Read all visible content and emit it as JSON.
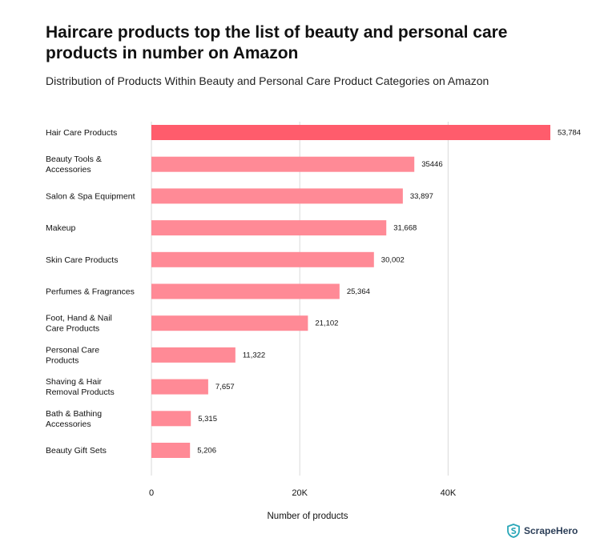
{
  "title": "Haircare products top the list of beauty and personal care products in number on Amazon",
  "subtitle": "Distribution of Products Within Beauty and Personal Care Product Categories on Amazon",
  "brand": {
    "name": "ScrapeHero",
    "icon": "shield-s-logo"
  },
  "colors": {
    "bar": "#ff8a96",
    "highlight": "#ff5c6c",
    "grid": "#d9d9d9"
  },
  "chart_data": {
    "type": "bar",
    "orientation": "horizontal",
    "xlabel": "Number of products",
    "ylabel": "",
    "xlim": [
      0,
      53784
    ],
    "xticks": [
      0,
      20000,
      40000
    ],
    "xtick_labels": [
      "0",
      "20K",
      "40K"
    ],
    "grid": true,
    "categories": [
      "Hair Care Products",
      "Beauty Tools & Accessories",
      "Salon & Spa Equipment",
      "Makeup",
      "Skin Care Products",
      "Perfumes & Fragrances",
      "Foot, Hand & Nail Care Products",
      "Personal Care Products",
      "Shaving & Hair Removal Products",
      "Bath & Bathing Accessories",
      "Beauty Gift Sets"
    ],
    "category_lines": [
      [
        "Hair Care Products"
      ],
      [
        "Beauty Tools &",
        "Accessories"
      ],
      [
        "Salon & Spa Equipment"
      ],
      [
        "Makeup"
      ],
      [
        "Skin Care Products"
      ],
      [
        "Perfumes & Fragrances"
      ],
      [
        "Foot, Hand & Nail",
        "Care Products"
      ],
      [
        "Personal Care",
        "Products"
      ],
      [
        "Shaving & Hair",
        "Removal Products"
      ],
      [
        "Bath & Bathing",
        "Accessories"
      ],
      [
        "Beauty Gift Sets"
      ]
    ],
    "values": [
      53784,
      35446,
      33897,
      31668,
      30002,
      25364,
      21102,
      11322,
      7657,
      5315,
      5206
    ],
    "value_labels": [
      "53,784",
      "35446",
      "33,897",
      "31,668",
      "30,002",
      "25,364",
      "21,102",
      "11,322",
      "7,657",
      "5,315",
      "5,206"
    ]
  }
}
